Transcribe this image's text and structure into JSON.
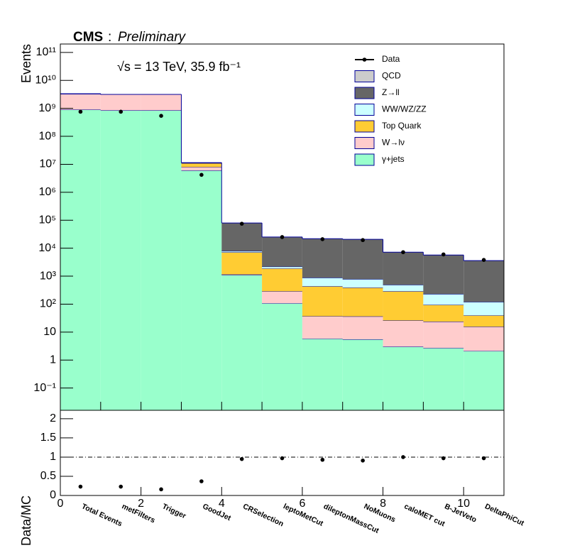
{
  "chart_data": [
    {
      "type": "stacked_histogram",
      "title": "CMS",
      "subtitle": "Preliminary",
      "annotation": "√s = 13 TeV, 35.9 fb⁻¹",
      "ylabel": "Events",
      "bins": [
        0,
        1,
        2,
        3,
        4,
        5,
        6,
        7,
        8,
        9,
        10,
        11
      ],
      "categories": [
        "Total Events",
        "metFilters",
        "Trigger",
        "GoodJet",
        "CRSelection",
        "leptoMetCut",
        "dileptonMassCut",
        "NoMuons",
        "caloMET cut",
        "B-JetVeto",
        "DeltaPhiCut"
      ],
      "series": [
        {
          "name": "γ+jets",
          "color": "#99ffcc",
          "values": [
            900000000,
            850000000,
            850000000,
            6000000,
            1100,
            107,
            5.8,
            5.5,
            3,
            2.7,
            2.1
          ]
        },
        {
          "name": "W→lν",
          "color": "#ffcccc",
          "values": [
            2400000000,
            2300000000,
            2300000000,
            2000000,
            50,
            180,
            31,
            31,
            23,
            21,
            13.5
          ]
        },
        {
          "name": "Top Quark",
          "color": "#ffcc33",
          "values": [
            10000000,
            10000000,
            10000000,
            3000000,
            6000,
            1600,
            400,
            355,
            264,
            71,
            24
          ]
        },
        {
          "name": "WW/WZ/ZZ",
          "color": "#ccffff",
          "values": [
            1000000,
            1000000,
            1000000,
            200000,
            800,
            300,
            445,
            390,
            200,
            135,
            80
          ]
        },
        {
          "name": "Z→ll",
          "color": "#666666",
          "values": [
            1000000,
            1000000,
            1000000,
            300000,
            72000,
            23000,
            21000,
            20000,
            6700,
            5470,
            3480
          ]
        },
        {
          "name": "QCD",
          "color": "#cccccc",
          "values": [
            0,
            0,
            0,
            0,
            0,
            0,
            0,
            0,
            0,
            0,
            0
          ]
        }
      ],
      "data": {
        "name": "Data",
        "color": "#000000",
        "values": [
          760000000,
          760000000,
          540000000,
          4200000,
          75000,
          25000,
          21000,
          19500,
          7200,
          6000,
          3800
        ]
      },
      "xlim": [
        0,
        11
      ],
      "ylim": [
        0.016,
        200000000000
      ],
      "log_y": true,
      "yticks": [
        {
          "value": 0.1,
          "label": "10⁻¹"
        },
        1,
        10,
        {
          "value": 100,
          "label": "10²"
        },
        {
          "value": 1000,
          "label": "10³"
        },
        {
          "value": 10000,
          "label": "10⁴"
        },
        {
          "value": 100000,
          "label": "10⁵"
        },
        {
          "value": 1000000,
          "label": "10⁶"
        },
        {
          "value": 10000000,
          "label": "10⁷"
        },
        {
          "value": 100000000,
          "label": "10⁸"
        },
        {
          "value": 1000000000,
          "label": "10⁹"
        },
        {
          "value": 10000000000,
          "label": "10¹⁰"
        },
        {
          "value": 100000000000,
          "label": "10¹¹"
        }
      ]
    },
    {
      "type": "scatter",
      "ylabel": "Data/MC",
      "x": [
        0.5,
        1.5,
        2.5,
        3.5,
        4.5,
        5.5,
        6.5,
        7.5,
        8.5,
        9.5,
        10.5
      ],
      "values": [
        0.23,
        0.23,
        0.16,
        0.37,
        0.95,
        0.97,
        0.93,
        0.91,
        1.0,
        0.97,
        0.97
      ],
      "xlim": [
        0,
        11
      ],
      "xticks": [
        0,
        2,
        4,
        6,
        8,
        10
      ],
      "ylim": [
        0,
        2.22
      ],
      "yticks": [
        0,
        0.5,
        1,
        1.5,
        2
      ],
      "reference_line": 1
    }
  ]
}
